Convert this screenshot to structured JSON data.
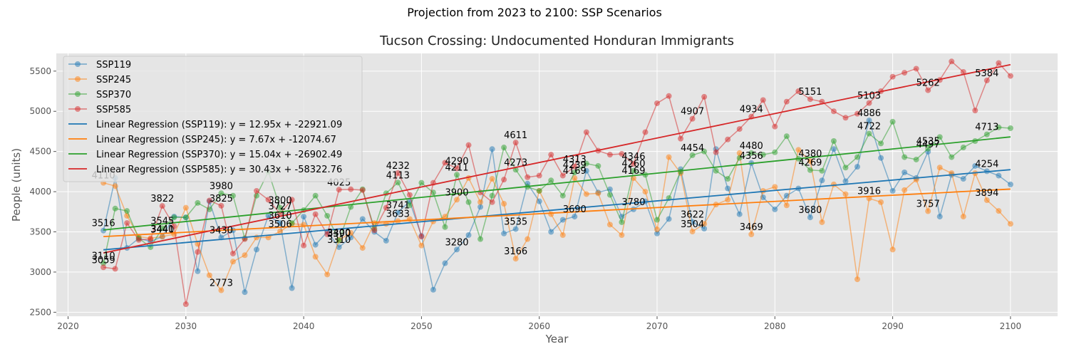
{
  "chart_data": {
    "type": "line",
    "suptitle": "Projection from 2023 to 2100: SSP Scenarios",
    "title": "Tucson Crossing: Undocumented Honduran Immigrants",
    "xlabel": "Year",
    "ylabel": "People (units)",
    "xlim": [
      2019,
      2104
    ],
    "ylim": [
      2450,
      5720
    ],
    "xticks": [
      2020,
      2030,
      2040,
      2050,
      2060,
      2070,
      2080,
      2090,
      2100
    ],
    "yticks": [
      2500,
      3000,
      3500,
      4000,
      4500,
      5000,
      5500
    ],
    "grid": true,
    "legend_position": "top-left",
    "colors": {
      "SSP119": "#1f77b4",
      "SSP245": "#ff7f0e",
      "SSP370": "#2ca02c",
      "SSP585": "#d62728"
    },
    "x_start": 2023,
    "series": [
      {
        "name": "SSP119",
        "color": "#1f77b4",
        "values": [
          3516,
          4170,
          3300,
          3420,
          3380,
          3440,
          3690,
          3680,
          3010,
          3880,
          3430,
          3520,
          2750,
          3280,
          3700,
          3610,
          2800,
          3690,
          3340,
          3500,
          3310,
          3430,
          3660,
          3500,
          3390,
          3741,
          3880,
          3450,
          2780,
          3110,
          3280,
          3460,
          3810,
          4530,
          3480,
          3535,
          4100,
          3880,
          3500,
          3650,
          3690,
          4260,
          3990,
          4030,
          3690,
          3780,
          3880,
          3480,
          3660,
          4280,
          3622,
          3540,
          4530,
          4040,
          3720,
          4356,
          3930,
          3780,
          3950,
          4040,
          3680,
          4140,
          4530,
          4130,
          4310,
          4886,
          4420,
          4010,
          4240,
          4170,
          4497,
          3690,
          4210,
          4160,
          4320,
          4254,
          4200,
          4090
        ]
      },
      {
        "name": "SSP245",
        "color": "#ff7f0e",
        "values": [
          4110,
          4070,
          3700,
          3440,
          3420,
          3441,
          3470,
          3800,
          3350,
          2960,
          2773,
          3130,
          3210,
          3430,
          3430,
          3506,
          3600,
          3590,
          3190,
          2970,
          3400,
          3487,
          3300,
          3610,
          3600,
          3633,
          3660,
          3330,
          3630,
          3690,
          3900,
          4170,
          3870,
          4160,
          3850,
          3166,
          3410,
          4010,
          3720,
          3460,
          4169,
          3970,
          3980,
          3590,
          3460,
          4169,
          4000,
          3530,
          4430,
          4230,
          3504,
          3600,
          3840,
          3900,
          4480,
          3469,
          4010,
          4060,
          3830,
          4520,
          4380,
          3620,
          4090,
          3970,
          2910,
          3916,
          3870,
          3280,
          4020,
          4150,
          3757,
          4300,
          4230,
          3690,
          4230,
          3894,
          3760,
          3600
        ]
      },
      {
        "name": "SSP370",
        "color": "#2ca02c",
        "values": [
          3110,
          3790,
          3760,
          3420,
          3310,
          3545,
          3680,
          3680,
          3860,
          3780,
          3980,
          3950,
          3420,
          3950,
          4250,
          3800,
          3609,
          3770,
          3950,
          3700,
          3390,
          3810,
          4030,
          3540,
          3980,
          4113,
          3830,
          4110,
          3990,
          3560,
          4211,
          3870,
          3410,
          3950,
          4550,
          4273,
          4060,
          4010,
          4140,
          3950,
          4239,
          4350,
          4320,
          3960,
          3620,
          4260,
          4210,
          3650,
          3920,
          4250,
          4454,
          4500,
          4260,
          4160,
          4420,
          4480,
          4460,
          4490,
          4690,
          4410,
          4269,
          4260,
          4630,
          4300,
          4430,
          4722,
          4600,
          4870,
          4430,
          4400,
          4535,
          4680,
          4430,
          4550,
          4630,
          4713,
          4800,
          4790
        ]
      },
      {
        "name": "SSP585",
        "color": "#d62728",
        "values": [
          3059,
          3040,
          3610,
          3400,
          3410,
          3822,
          3570,
          2600,
          3250,
          3890,
          3825,
          3230,
          3410,
          4010,
          3900,
          3727,
          3900,
          3330,
          3720,
          3470,
          4025,
          4030,
          4020,
          3520,
          3800,
          4232,
          3960,
          3440,
          4110,
          4360,
          4290,
          4580,
          3990,
          3870,
          4150,
          4611,
          4180,
          4200,
          4460,
          4200,
          4313,
          4740,
          4510,
          4460,
          4470,
          4346,
          4740,
          5100,
          5190,
          4660,
          4907,
          5180,
          4490,
          4650,
          4780,
          4934,
          5140,
          4810,
          5120,
          5250,
          5151,
          5120,
          5000,
          4920,
          4970,
          5103,
          5250,
          5430,
          5480,
          5530,
          5262,
          5390,
          5620,
          5490,
          5010,
          5384,
          5600,
          5440
        ]
      }
    ],
    "regression": [
      {
        "label": "Linear Regression (SSP119): y = 12.95x + -22921.09",
        "color": "#1f77b4",
        "slope": 12.95,
        "intercept": -22921.09
      },
      {
        "label": "Linear Regression (SSP245): y = 7.67x + -12074.67",
        "color": "#ff7f0e",
        "slope": 7.67,
        "intercept": -12074.67
      },
      {
        "label": "Linear Regression (SSP370): y = 15.04x + -26902.49",
        "color": "#2ca02c",
        "slope": 15.04,
        "intercept": -26902.49
      },
      {
        "label": "Linear Regression (SSP585): y = 30.43x + -58322.76",
        "color": "#d62728",
        "slope": 30.43,
        "intercept": -58322.76
      }
    ],
    "annotations": [
      {
        "year": 2023,
        "series": "SSP119"
      },
      {
        "year": 2023,
        "series": "SSP245"
      },
      {
        "year": 2023,
        "series": "SSP370"
      },
      {
        "year": 2023,
        "series": "SSP585"
      },
      {
        "year": 2028,
        "series": "SSP119"
      },
      {
        "year": 2028,
        "series": "SSP245"
      },
      {
        "year": 2028,
        "series": "SSP370"
      },
      {
        "year": 2028,
        "series": "SSP585"
      },
      {
        "year": 2033,
        "series": "SSP119"
      },
      {
        "year": 2033,
        "series": "SSP245"
      },
      {
        "year": 2033,
        "series": "SSP370"
      },
      {
        "year": 2033,
        "series": "SSP585"
      },
      {
        "year": 2038,
        "series": "SSP119"
      },
      {
        "year": 2038,
        "series": "SSP245"
      },
      {
        "year": 2038,
        "series": "SSP370"
      },
      {
        "year": 2038,
        "series": "SSP585"
      },
      {
        "year": 2043,
        "series": "SSP119"
      },
      {
        "year": 2043,
        "series": "SSP245"
      },
      {
        "year": 2043,
        "series": "SSP370"
      },
      {
        "year": 2043,
        "series": "SSP585"
      },
      {
        "year": 2048,
        "series": "SSP119"
      },
      {
        "year": 2048,
        "series": "SSP245"
      },
      {
        "year": 2048,
        "series": "SSP370"
      },
      {
        "year": 2048,
        "series": "SSP585"
      },
      {
        "year": 2053,
        "series": "SSP119"
      },
      {
        "year": 2053,
        "series": "SSP245"
      },
      {
        "year": 2053,
        "series": "SSP370"
      },
      {
        "year": 2053,
        "series": "SSP585"
      },
      {
        "year": 2058,
        "series": "SSP119"
      },
      {
        "year": 2058,
        "series": "SSP245"
      },
      {
        "year": 2058,
        "series": "SSP370"
      },
      {
        "year": 2058,
        "series": "SSP585"
      },
      {
        "year": 2063,
        "series": "SSP119"
      },
      {
        "year": 2063,
        "series": "SSP245"
      },
      {
        "year": 2063,
        "series": "SSP370"
      },
      {
        "year": 2063,
        "series": "SSP585"
      },
      {
        "year": 2068,
        "series": "SSP119"
      },
      {
        "year": 2068,
        "series": "SSP245"
      },
      {
        "year": 2068,
        "series": "SSP370"
      },
      {
        "year": 2068,
        "series": "SSP585"
      },
      {
        "year": 2073,
        "series": "SSP119"
      },
      {
        "year": 2073,
        "series": "SSP245"
      },
      {
        "year": 2073,
        "series": "SSP370"
      },
      {
        "year": 2073,
        "series": "SSP585"
      },
      {
        "year": 2078,
        "series": "SSP119"
      },
      {
        "year": 2078,
        "series": "SSP245"
      },
      {
        "year": 2078,
        "series": "SSP370"
      },
      {
        "year": 2078,
        "series": "SSP585"
      },
      {
        "year": 2083,
        "series": "SSP119"
      },
      {
        "year": 2083,
        "series": "SSP245"
      },
      {
        "year": 2083,
        "series": "SSP370"
      },
      {
        "year": 2083,
        "series": "SSP585"
      },
      {
        "year": 2088,
        "series": "SSP119"
      },
      {
        "year": 2088,
        "series": "SSP245"
      },
      {
        "year": 2088,
        "series": "SSP370"
      },
      {
        "year": 2088,
        "series": "SSP585"
      },
      {
        "year": 2093,
        "series": "SSP119"
      },
      {
        "year": 2093,
        "series": "SSP245"
      },
      {
        "year": 2093,
        "series": "SSP370"
      },
      {
        "year": 2093,
        "series": "SSP585"
      },
      {
        "year": 2098,
        "series": "SSP119"
      },
      {
        "year": 2098,
        "series": "SSP245"
      },
      {
        "year": 2098,
        "series": "SSP370"
      },
      {
        "year": 2098,
        "series": "SSP585"
      }
    ]
  }
}
